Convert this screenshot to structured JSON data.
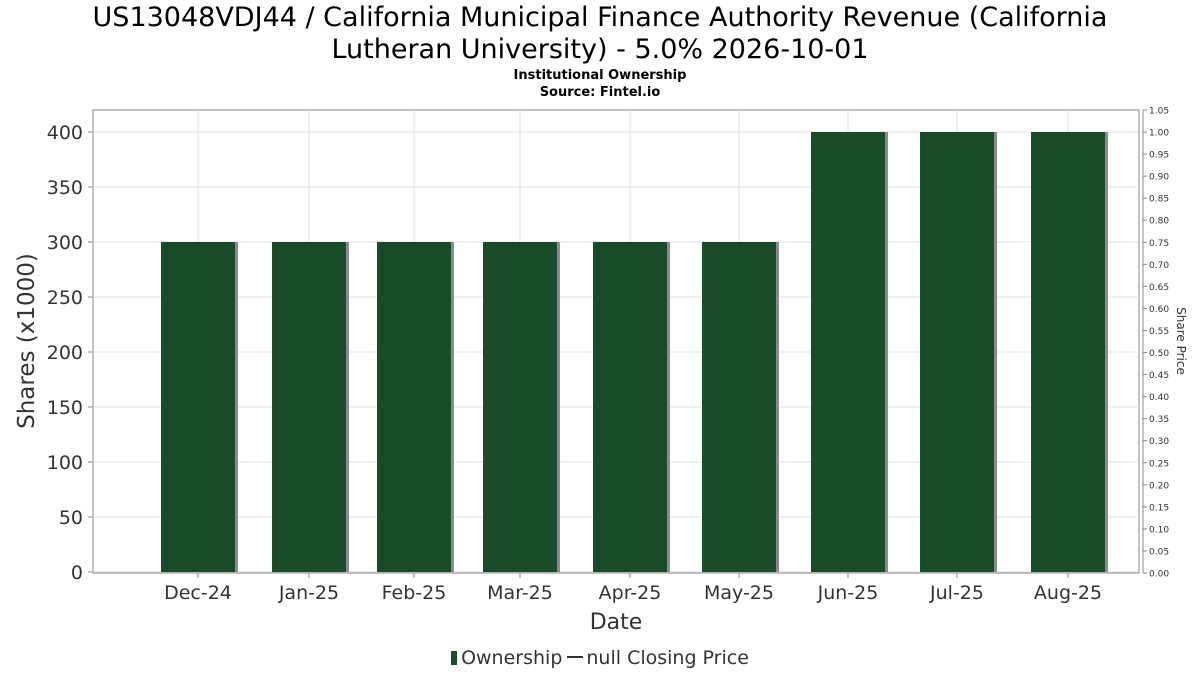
{
  "header": {
    "title_line1": "US13048VDJ44 / California Municipal Finance Authority Revenue (California",
    "title_line2": "Lutheran University) - 5.0% 2026-10-01",
    "subtitle": "Institutional Ownership",
    "source": "Source: Fintel.io"
  },
  "legend": {
    "ownership_label": "Ownership",
    "price_label": "null Closing Price"
  },
  "colors": {
    "bar": "#1a4d2a",
    "bar_edge": "#8a8a8a",
    "grid": "#e0e0e0",
    "axis": "#888888"
  },
  "chart_data": {
    "type": "bar",
    "categories": [
      "Dec-24",
      "Jan-25",
      "Feb-25",
      "Mar-25",
      "Apr-25",
      "May-25",
      "Jun-25",
      "Jul-25",
      "Aug-25"
    ],
    "series": [
      {
        "name": "Ownership",
        "values": [
          300,
          300,
          300,
          300,
          300,
          300,
          400,
          400,
          400
        ]
      }
    ],
    "xlabel": "Date",
    "ylabel": "Shares (x1000)",
    "ylim": [
      0,
      420
    ],
    "yticks": [
      "0",
      "50",
      "100",
      "150",
      "200",
      "250",
      "300",
      "350",
      "400"
    ],
    "y2label": "Share Price",
    "y2lim": [
      0,
      1.05
    ],
    "y2ticks": [
      "0.00",
      "0.05",
      "0.10",
      "0.15",
      "0.20",
      "0.25",
      "0.30",
      "0.35",
      "0.40",
      "0.45",
      "0.50",
      "0.55",
      "0.60",
      "0.65",
      "0.70",
      "0.75",
      "0.80",
      "0.85",
      "0.90",
      "0.95",
      "1.00",
      "1.05"
    ],
    "grid": true,
    "legend_position": "bottom"
  }
}
